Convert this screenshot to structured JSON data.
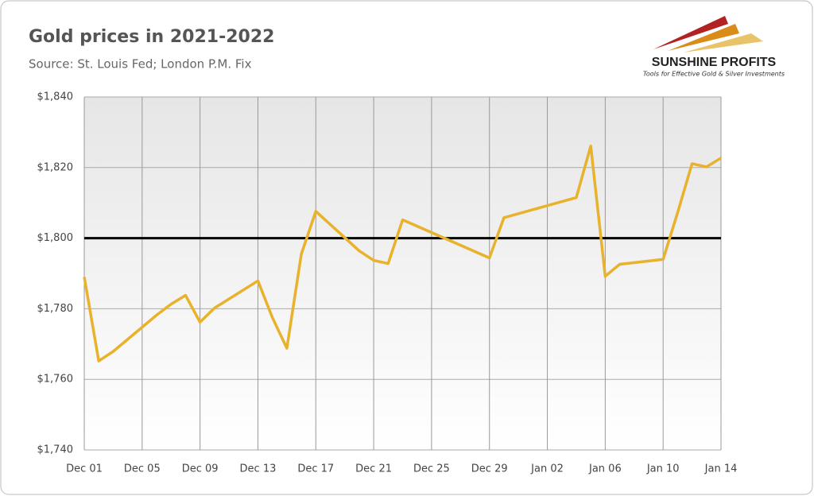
{
  "chart_data": {
    "type": "line",
    "title": "Gold prices in 2021-2022",
    "subtitle": "Source: St. Louis Fed; London P.M. Fix",
    "x": [
      "Dec 01",
      "Dec 02",
      "Dec 03",
      "Dec 06",
      "Dec 07",
      "Dec 08",
      "Dec 09",
      "Dec 10",
      "Dec 13",
      "Dec 14",
      "Dec 15",
      "Dec 16",
      "Dec 17",
      "Dec 20",
      "Dec 21",
      "Dec 22",
      "Dec 23",
      "Dec 29",
      "Dec 30",
      "Jan 04",
      "Jan 05",
      "Jan 06",
      "Jan 07",
      "Jan 10",
      "Jan 11",
      "Jan 12",
      "Jan 13",
      "Jan 14"
    ],
    "series": [
      {
        "name": "Gold price",
        "color": "#e8b22c",
        "values": [
          1789,
          1765.2,
          1767.9,
          1778.2,
          1781.3,
          1783.8,
          1776.2,
          1780.2,
          1787.9,
          1777.5,
          1768.8,
          1795.5,
          1807.6,
          1796.4,
          1793.7,
          1792.8,
          1805.2,
          1794.4,
          1805.8,
          1811.5,
          1826.1,
          1789.2,
          1792.6,
          1794,
          1807.2,
          1821.1,
          1820.2,
          1822.7
        ]
      }
    ],
    "xlim": [
      "Dec 01",
      "Jan 14"
    ],
    "xticks": [
      "Dec 01",
      "Dec 05",
      "Dec 09",
      "Dec 13",
      "Dec 17",
      "Dec 21",
      "Dec 25",
      "Dec 29",
      "Jan 02",
      "Jan 06",
      "Jan 10",
      "Jan 14"
    ],
    "ylim": [
      1740,
      1840
    ],
    "yticks": [
      {
        "value": 1740,
        "label": "$1,740"
      },
      {
        "value": 1760,
        "label": "$1,760"
      },
      {
        "value": 1780,
        "label": "$1,780"
      },
      {
        "value": 1800,
        "label": "$1,800"
      },
      {
        "value": 1820,
        "label": "$1,820"
      },
      {
        "value": 1840,
        "label": "$1,840"
      }
    ],
    "reference_line": {
      "value": 1800,
      "color": "#000000"
    },
    "grid": true
  },
  "brand": {
    "name": "SUNSHINE PROFITS",
    "tagline": "Tools for Effective Gold & Silver Investments"
  }
}
